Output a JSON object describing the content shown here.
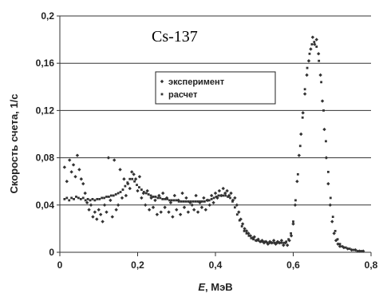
{
  "chart_data": {
    "type": "scatter",
    "title": "Cs-137",
    "xlabel_italic": "E",
    "xlabel_rest": ", МэВ",
    "ylabel": "Скорость счета, 1/с",
    "xlim": [
      0,
      0.8
    ],
    "ylim": [
      0,
      0.2
    ],
    "x_ticks": [
      "0",
      "0,2",
      "0,4",
      "0,6",
      "0,8"
    ],
    "y_ticks": [
      "0",
      "0,04",
      "0,08",
      "0,12",
      "0,16",
      "0,2"
    ],
    "grid": "horizontal",
    "legend_position": "top-center",
    "marker_color": "#333333",
    "series": [
      {
        "name": "эксперимент",
        "marker": "diamond",
        "points": [
          [
            0.012,
            0.072
          ],
          [
            0.018,
            0.06
          ],
          [
            0.025,
            0.078
          ],
          [
            0.03,
            0.068
          ],
          [
            0.035,
            0.074
          ],
          [
            0.04,
            0.064
          ],
          [
            0.045,
            0.082
          ],
          [
            0.05,
            0.07
          ],
          [
            0.055,
            0.062
          ],
          [
            0.06,
            0.058
          ],
          [
            0.065,
            0.05
          ],
          [
            0.07,
            0.042
          ],
          [
            0.075,
            0.036
          ],
          [
            0.08,
            0.04
          ],
          [
            0.085,
            0.03
          ],
          [
            0.09,
            0.034
          ],
          [
            0.095,
            0.028
          ],
          [
            0.1,
            0.036
          ],
          [
            0.105,
            0.032
          ],
          [
            0.11,
            0.026
          ],
          [
            0.115,
            0.04
          ],
          [
            0.12,
            0.034
          ],
          [
            0.125,
            0.08
          ],
          [
            0.13,
            0.044
          ],
          [
            0.135,
            0.03
          ],
          [
            0.14,
            0.078
          ],
          [
            0.145,
            0.036
          ],
          [
            0.15,
            0.04
          ],
          [
            0.155,
            0.07
          ],
          [
            0.16,
            0.046
          ],
          [
            0.165,
            0.062
          ],
          [
            0.17,
            0.048
          ],
          [
            0.175,
            0.058
          ],
          [
            0.18,
            0.054
          ],
          [
            0.185,
            0.068
          ],
          [
            0.19,
            0.066
          ],
          [
            0.195,
            0.062
          ],
          [
            0.2,
            0.052
          ],
          [
            0.205,
            0.064
          ],
          [
            0.21,
            0.046
          ],
          [
            0.215,
            0.05
          ],
          [
            0.22,
            0.04
          ],
          [
            0.225,
            0.052
          ],
          [
            0.23,
            0.036
          ],
          [
            0.235,
            0.046
          ],
          [
            0.24,
            0.038
          ],
          [
            0.245,
            0.044
          ],
          [
            0.25,
            0.032
          ],
          [
            0.255,
            0.048
          ],
          [
            0.26,
            0.034
          ],
          [
            0.265,
            0.05
          ],
          [
            0.27,
            0.038
          ],
          [
            0.275,
            0.046
          ],
          [
            0.28,
            0.034
          ],
          [
            0.285,
            0.042
          ],
          [
            0.29,
            0.03
          ],
          [
            0.295,
            0.048
          ],
          [
            0.3,
            0.036
          ],
          [
            0.305,
            0.044
          ],
          [
            0.31,
            0.032
          ],
          [
            0.315,
            0.05
          ],
          [
            0.32,
            0.038
          ],
          [
            0.325,
            0.046
          ],
          [
            0.33,
            0.034
          ],
          [
            0.335,
            0.042
          ],
          [
            0.34,
            0.04
          ],
          [
            0.345,
            0.036
          ],
          [
            0.35,
            0.048
          ],
          [
            0.355,
            0.034
          ],
          [
            0.36,
            0.042
          ],
          [
            0.365,
            0.038
          ],
          [
            0.37,
            0.046
          ],
          [
            0.375,
            0.036
          ],
          [
            0.38,
            0.044
          ],
          [
            0.385,
            0.04
          ],
          [
            0.39,
            0.048
          ],
          [
            0.395,
            0.042
          ],
          [
            0.4,
            0.05
          ],
          [
            0.405,
            0.046
          ],
          [
            0.41,
            0.052
          ],
          [
            0.415,
            0.048
          ],
          [
            0.42,
            0.054
          ],
          [
            0.425,
            0.05
          ],
          [
            0.43,
            0.052
          ],
          [
            0.435,
            0.048
          ],
          [
            0.44,
            0.05
          ],
          [
            0.445,
            0.044
          ],
          [
            0.45,
            0.046
          ],
          [
            0.455,
            0.04
          ],
          [
            0.46,
            0.034
          ],
          [
            0.465,
            0.028
          ],
          [
            0.47,
            0.024
          ],
          [
            0.475,
            0.02
          ],
          [
            0.48,
            0.018
          ],
          [
            0.485,
            0.016
          ],
          [
            0.49,
            0.014
          ],
          [
            0.495,
            0.012
          ],
          [
            0.5,
            0.013
          ],
          [
            0.505,
            0.01
          ],
          [
            0.51,
            0.011
          ],
          [
            0.515,
            0.009
          ],
          [
            0.52,
            0.01
          ],
          [
            0.525,
            0.008
          ],
          [
            0.53,
            0.009
          ],
          [
            0.535,
            0.007
          ],
          [
            0.54,
            0.009
          ],
          [
            0.545,
            0.008
          ],
          [
            0.55,
            0.01
          ],
          [
            0.555,
            0.007
          ],
          [
            0.56,
            0.009
          ],
          [
            0.565,
            0.008
          ],
          [
            0.57,
            0.01
          ],
          [
            0.575,
            0.006
          ],
          [
            0.58,
            0.008
          ],
          [
            0.585,
            0.006
          ],
          [
            0.59,
            0.01
          ],
          [
            0.595,
            0.014
          ],
          [
            0.6,
            0.024
          ],
          [
            0.605,
            0.04
          ],
          [
            0.61,
            0.06
          ],
          [
            0.615,
            0.082
          ],
          [
            0.62,
            0.1
          ],
          [
            0.625,
            0.118
          ],
          [
            0.63,
            0.134
          ],
          [
            0.635,
            0.15
          ],
          [
            0.64,
            0.162
          ],
          [
            0.645,
            0.172
          ],
          [
            0.65,
            0.182
          ],
          [
            0.655,
            0.176
          ],
          [
            0.66,
            0.18
          ],
          [
            0.665,
            0.168
          ],
          [
            0.67,
            0.15
          ],
          [
            0.675,
            0.128
          ],
          [
            0.68,
            0.104
          ],
          [
            0.685,
            0.08
          ],
          [
            0.69,
            0.058
          ],
          [
            0.695,
            0.04
          ],
          [
            0.7,
            0.026
          ],
          [
            0.705,
            0.016
          ],
          [
            0.71,
            0.01
          ],
          [
            0.715,
            0.007
          ],
          [
            0.72,
            0.005
          ],
          [
            0.73,
            0.004
          ],
          [
            0.74,
            0.003
          ],
          [
            0.75,
            0.002
          ],
          [
            0.76,
            0.002
          ],
          [
            0.77,
            0.001
          ],
          [
            0.78,
            0.001
          ]
        ]
      },
      {
        "name": "расчет",
        "marker": "square",
        "points": [
          [
            0.012,
            0.045
          ],
          [
            0.018,
            0.046
          ],
          [
            0.024,
            0.044
          ],
          [
            0.03,
            0.046
          ],
          [
            0.036,
            0.045
          ],
          [
            0.042,
            0.047
          ],
          [
            0.048,
            0.046
          ],
          [
            0.054,
            0.045
          ],
          [
            0.06,
            0.046
          ],
          [
            0.066,
            0.044
          ],
          [
            0.072,
            0.045
          ],
          [
            0.078,
            0.044
          ],
          [
            0.084,
            0.045
          ],
          [
            0.09,
            0.044
          ],
          [
            0.096,
            0.045
          ],
          [
            0.102,
            0.045
          ],
          [
            0.108,
            0.046
          ],
          [
            0.114,
            0.046
          ],
          [
            0.12,
            0.047
          ],
          [
            0.126,
            0.047
          ],
          [
            0.132,
            0.048
          ],
          [
            0.138,
            0.048
          ],
          [
            0.144,
            0.049
          ],
          [
            0.15,
            0.05
          ],
          [
            0.156,
            0.051
          ],
          [
            0.162,
            0.053
          ],
          [
            0.168,
            0.056
          ],
          [
            0.174,
            0.059
          ],
          [
            0.18,
            0.062
          ],
          [
            0.186,
            0.062
          ],
          [
            0.192,
            0.06
          ],
          [
            0.198,
            0.057
          ],
          [
            0.204,
            0.055
          ],
          [
            0.21,
            0.053
          ],
          [
            0.216,
            0.051
          ],
          [
            0.222,
            0.05
          ],
          [
            0.228,
            0.049
          ],
          [
            0.234,
            0.048
          ],
          [
            0.24,
            0.047
          ],
          [
            0.246,
            0.047
          ],
          [
            0.252,
            0.046
          ],
          [
            0.258,
            0.046
          ],
          [
            0.264,
            0.045
          ],
          [
            0.27,
            0.045
          ],
          [
            0.276,
            0.045
          ],
          [
            0.282,
            0.044
          ],
          [
            0.288,
            0.044
          ],
          [
            0.294,
            0.044
          ],
          [
            0.3,
            0.044
          ],
          [
            0.306,
            0.043
          ],
          [
            0.312,
            0.043
          ],
          [
            0.318,
            0.043
          ],
          [
            0.324,
            0.043
          ],
          [
            0.33,
            0.043
          ],
          [
            0.336,
            0.043
          ],
          [
            0.342,
            0.043
          ],
          [
            0.348,
            0.043
          ],
          [
            0.354,
            0.043
          ],
          [
            0.36,
            0.043
          ],
          [
            0.366,
            0.043
          ],
          [
            0.372,
            0.043
          ],
          [
            0.378,
            0.044
          ],
          [
            0.384,
            0.044
          ],
          [
            0.39,
            0.045
          ],
          [
            0.396,
            0.046
          ],
          [
            0.402,
            0.047
          ],
          [
            0.408,
            0.048
          ],
          [
            0.414,
            0.048
          ],
          [
            0.42,
            0.048
          ],
          [
            0.426,
            0.048
          ],
          [
            0.432,
            0.047
          ],
          [
            0.438,
            0.046
          ],
          [
            0.444,
            0.043
          ],
          [
            0.45,
            0.038
          ],
          [
            0.456,
            0.032
          ],
          [
            0.462,
            0.027
          ],
          [
            0.468,
            0.022
          ],
          [
            0.474,
            0.018
          ],
          [
            0.48,
            0.016
          ],
          [
            0.486,
            0.014
          ],
          [
            0.492,
            0.012
          ],
          [
            0.498,
            0.011
          ],
          [
            0.504,
            0.01
          ],
          [
            0.51,
            0.01
          ],
          [
            0.516,
            0.009
          ],
          [
            0.522,
            0.009
          ],
          [
            0.528,
            0.009
          ],
          [
            0.534,
            0.008
          ],
          [
            0.54,
            0.008
          ],
          [
            0.546,
            0.008
          ],
          [
            0.552,
            0.008
          ],
          [
            0.558,
            0.008
          ],
          [
            0.564,
            0.008
          ],
          [
            0.57,
            0.008
          ],
          [
            0.576,
            0.008
          ],
          [
            0.582,
            0.009
          ],
          [
            0.588,
            0.011
          ],
          [
            0.594,
            0.016
          ],
          [
            0.6,
            0.026
          ],
          [
            0.606,
            0.044
          ],
          [
            0.612,
            0.066
          ],
          [
            0.618,
            0.09
          ],
          [
            0.624,
            0.114
          ],
          [
            0.63,
            0.138
          ],
          [
            0.636,
            0.156
          ],
          [
            0.642,
            0.168
          ],
          [
            0.648,
            0.176
          ],
          [
            0.654,
            0.178
          ],
          [
            0.66,
            0.174
          ],
          [
            0.666,
            0.162
          ],
          [
            0.672,
            0.144
          ],
          [
            0.678,
            0.12
          ],
          [
            0.684,
            0.094
          ],
          [
            0.69,
            0.068
          ],
          [
            0.696,
            0.046
          ],
          [
            0.702,
            0.03
          ],
          [
            0.708,
            0.018
          ],
          [
            0.714,
            0.011
          ],
          [
            0.72,
            0.007
          ],
          [
            0.726,
            0.005
          ],
          [
            0.735,
            0.004
          ],
          [
            0.745,
            0.003
          ],
          [
            0.755,
            0.002
          ],
          [
            0.765,
            0.001
          ],
          [
            0.775,
            0.001
          ]
        ]
      }
    ]
  }
}
